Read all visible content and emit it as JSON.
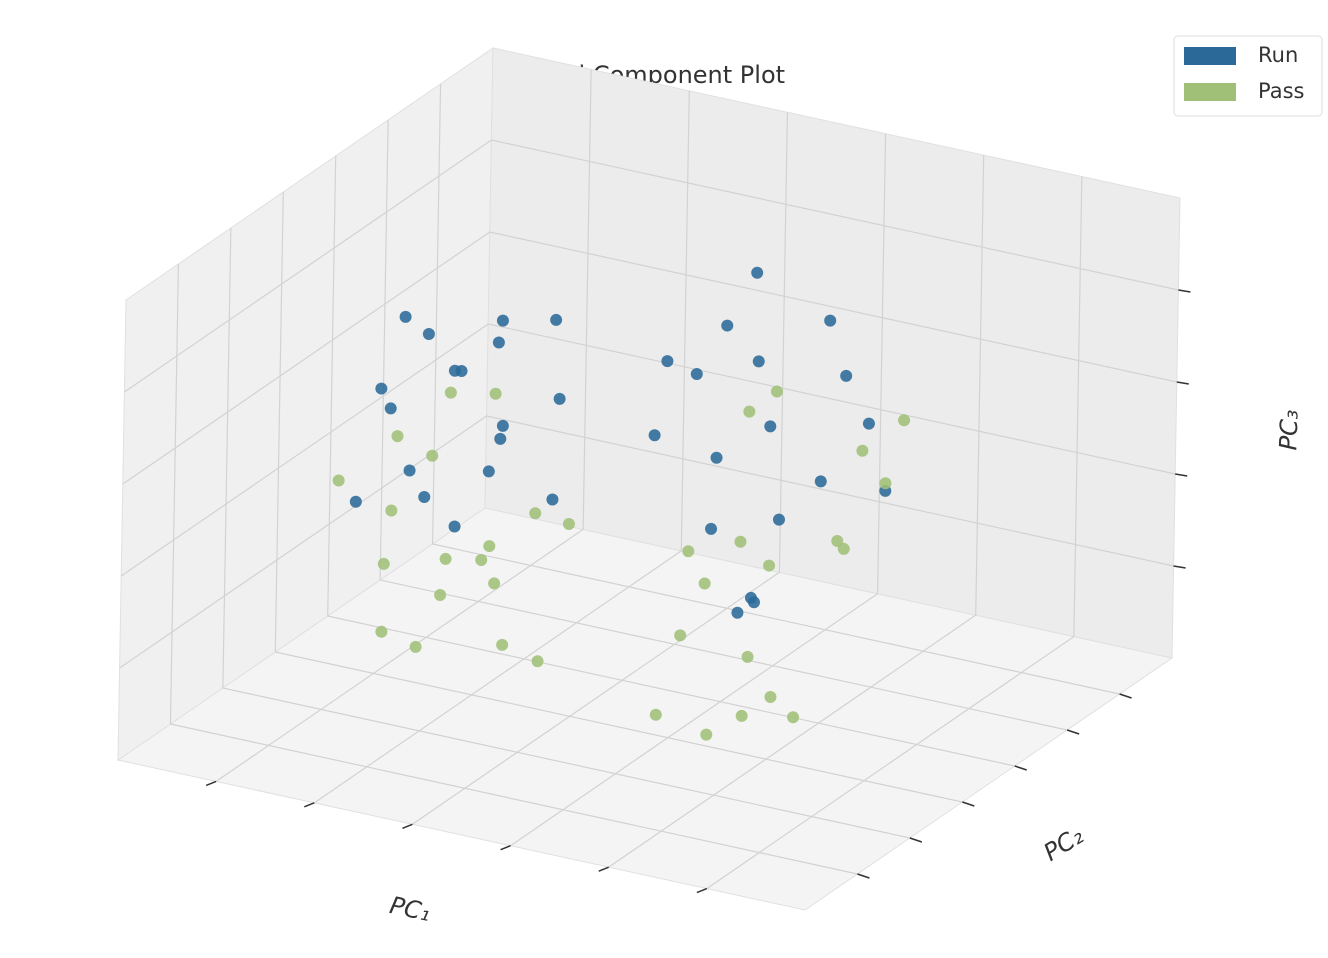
{
  "chart_data": {
    "type": "scatter3d",
    "title": "Principal Component Plot",
    "xlabel": "PC₁",
    "ylabel": "PC₂",
    "zlabel": "PC₃",
    "xlim": [
      -3,
      3
    ],
    "ylim": [
      -3,
      3
    ],
    "zlim": [
      -3,
      3
    ],
    "legend": "upper right",
    "grid": true,
    "series": [
      {
        "name": "Run",
        "color": "#2b6a98",
        "x": [
          -2.5,
          -1.2,
          -1.9,
          -2.2,
          -1.4,
          -1.7,
          -2.6,
          -1.0,
          -1.6,
          -2.0,
          -1.3,
          -2.3,
          -1.8,
          -1.1,
          -2.1,
          -1.5,
          -2.4,
          -1.7,
          0.3,
          1.5,
          0.9,
          1.8,
          0.6,
          1.2,
          1.9,
          0.4,
          1.0,
          1.6,
          0.7,
          1.3,
          0.2,
          1.7,
          0.8,
          1.4,
          1.1,
          0.5
        ],
        "y": [
          0.3,
          0.7,
          -0.1,
          0.5,
          0.2,
          0.8,
          0.1,
          0.4,
          -0.2,
          0.6,
          0.0,
          0.3,
          0.9,
          0.5,
          -0.3,
          0.2,
          0.6,
          0.1,
          -0.3,
          0.1,
          -0.6,
          0.2,
          -0.1,
          -0.5,
          0.3,
          0.0,
          -0.4,
          -0.2,
          0.4,
          -0.7,
          -0.3,
          0.0,
          0.2,
          -0.5,
          -0.1,
          0.3
        ],
        "z": [
          0.2,
          1.3,
          -0.8,
          0.9,
          1.5,
          -0.3,
          -1.2,
          0.5,
          1.0,
          -1.6,
          0.1,
          1.2,
          0.7,
          -0.9,
          0.4,
          -0.5,
          -1.0,
          0.8,
          1.8,
          2.5,
          0.9,
          1.2,
          -0.4,
          2.2,
          0.3,
          1.5,
          -1.2,
          0.6,
          2.7,
          -0.8,
          0.8,
          1.9,
          -1.4,
          0.2,
          1.1,
          2.0
        ]
      },
      {
        "name": "Pass",
        "color": "#a0c078",
        "x": [
          -2.4,
          -1.3,
          -1.9,
          -2.1,
          -1.5,
          -1.7,
          -2.7,
          -1.1,
          -1.6,
          -2.0,
          -1.2,
          -2.3,
          -1.8,
          -0.9,
          -2.2,
          -1.4,
          -2.5,
          -1.8,
          0.4,
          1.6,
          0.8,
          1.9,
          0.5,
          1.3,
          2.0,
          0.3,
          1.0,
          1.7,
          0.6,
          1.2,
          0.2,
          1.8,
          0.9,
          1.5,
          1.1,
          0.7
        ],
        "y": [
          0.2,
          0.6,
          -0.2,
          0.4,
          0.1,
          0.7,
          0.0,
          0.3,
          -0.3,
          0.5,
          -0.1,
          0.2,
          0.8,
          0.4,
          -0.2,
          0.1,
          0.5,
          0.0,
          -0.2,
          0.2,
          -0.5,
          0.3,
          0.0,
          -0.4,
          0.4,
          0.1,
          -0.3,
          -0.1,
          0.5,
          -0.6,
          -0.2,
          0.1,
          0.3,
          -0.4,
          0.0,
          0.2
        ],
        "z": [
          -2.0,
          -1.2,
          -2.7,
          -0.6,
          -1.6,
          -2.3,
          -0.9,
          -2.9,
          -1.4,
          0.2,
          -2.5,
          -0.3,
          -1.9,
          -1.1,
          -2.6,
          0.6,
          -1.5,
          -2.1,
          -1.8,
          -0.5,
          -2.8,
          0.4,
          -1.2,
          -2.2,
          1.2,
          -0.9,
          -2.6,
          -0.2,
          0.8,
          -1.6,
          -2.9,
          0.9,
          -1.0,
          -2.4,
          1.5,
          -0.7
        ]
      }
    ]
  }
}
